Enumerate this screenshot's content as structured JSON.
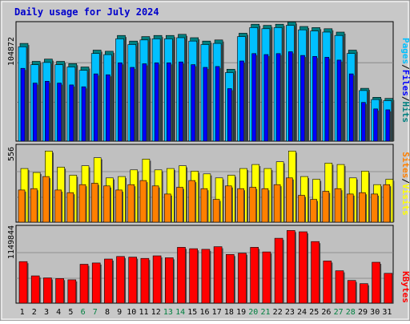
{
  "title": "Daily usage for July 2024",
  "colors": {
    "title": "#0000cc",
    "frame_bg": "#c8c8c8",
    "plot_bg": "#c0c0c0",
    "pages": "#00c0ff",
    "files": "#0000ff",
    "hits": "#008080",
    "visits": "#ffff00",
    "sites": "#ff8000",
    "kbytes": "#ff0000",
    "weekday_label": "#000000",
    "weekend_label": "#008040",
    "separator": "#000000"
  },
  "right_labels": {
    "pages": "Pages",
    "files": "Files",
    "hits": "Hits",
    "visits": "Visits",
    "sites": "Sites",
    "kbytes": "KBytes",
    "slash": "/"
  },
  "chart_data": {
    "type": "bar",
    "title": "Daily usage for July 2024",
    "categories": [
      "1",
      "2",
      "3",
      "4",
      "5",
      "6",
      "7",
      "8",
      "9",
      "10",
      "11",
      "12",
      "13",
      "14",
      "15",
      "16",
      "17",
      "18",
      "19",
      "20",
      "21",
      "22",
      "23",
      "24",
      "25",
      "26",
      "27",
      "28",
      "29",
      "30",
      "31"
    ],
    "weekend_days": [
      "6",
      "7",
      "13",
      "14",
      "20",
      "21",
      "27",
      "28"
    ],
    "panels": [
      {
        "id": "hits",
        "ymax_label": "104872",
        "ymax": 104872,
        "series": [
          {
            "name": "Hits",
            "values": [
              87000,
              71000,
              73000,
              71000,
              69000,
              66000,
              81000,
              80000,
              94000,
              89000,
              93000,
              94000,
              94000,
              95000,
              92000,
              89000,
              90000,
              64000,
              96000,
              104000,
              103000,
              104000,
              106000,
              102000,
              101000,
              100000,
              97000,
              81000,
              47000,
              39000,
              38000
            ]
          },
          {
            "name": "Files",
            "values": [
              79000,
              63000,
              65000,
              63000,
              61000,
              59000,
              73000,
              72000,
              85000,
              80000,
              84000,
              85000,
              85000,
              86000,
              83000,
              80000,
              81000,
              57000,
              87000,
              95000,
              94000,
              95000,
              97000,
              93000,
              92000,
              91000,
              88000,
              73000,
              42000,
              35000,
              34000
            ]
          },
          {
            "name": "Pages",
            "values": [
              84000,
              68000,
              70000,
              68000,
              66000,
              63000,
              78000,
              77000,
              91000,
              86000,
              90000,
              91000,
              91000,
              92000,
              89000,
              86000,
              87000,
              61000,
              93000,
              101000,
              100000,
              101000,
              103000,
              99000,
              98000,
              97000,
              94000,
              78000,
              45000,
              37000,
              36000
            ]
          }
        ]
      },
      {
        "id": "visits",
        "ymax_label": "556",
        "ymax": 556,
        "series": [
          {
            "name": "Visits",
            "values": [
              400,
              370,
              530,
              410,
              350,
              420,
              480,
              330,
              340,
              390,
              470,
              390,
              400,
              420,
              380,
              360,
              330,
              350,
              400,
              430,
              400,
              450,
              530,
              340,
              320,
              440,
              430,
              330,
              380,
              280,
              320
            ]
          },
          {
            "name": "Sites",
            "values": [
              240,
              250,
              340,
              240,
              220,
              280,
              290,
              270,
              240,
              280,
              310,
              270,
              210,
              260,
              310,
              250,
              170,
              270,
              250,
              260,
              250,
              280,
              330,
              200,
              170,
              230,
              250,
              210,
              220,
              210,
              280
            ]
          }
        ]
      },
      {
        "id": "kbytes",
        "ymax_label": "1149844",
        "ymax": 1149844,
        "series": [
          {
            "name": "KBytes",
            "values": [
              640000,
              420000,
              390000,
              380000,
              360000,
              600000,
              620000,
              680000,
              720000,
              710000,
              690000,
              730000,
              700000,
              860000,
              840000,
              830000,
              870000,
              750000,
              770000,
              860000,
              790000,
              1000000,
              1120000,
              1100000,
              950000,
              650000,
              500000,
              350000,
              300000,
              630000,
              460000
            ]
          }
        ]
      }
    ]
  }
}
